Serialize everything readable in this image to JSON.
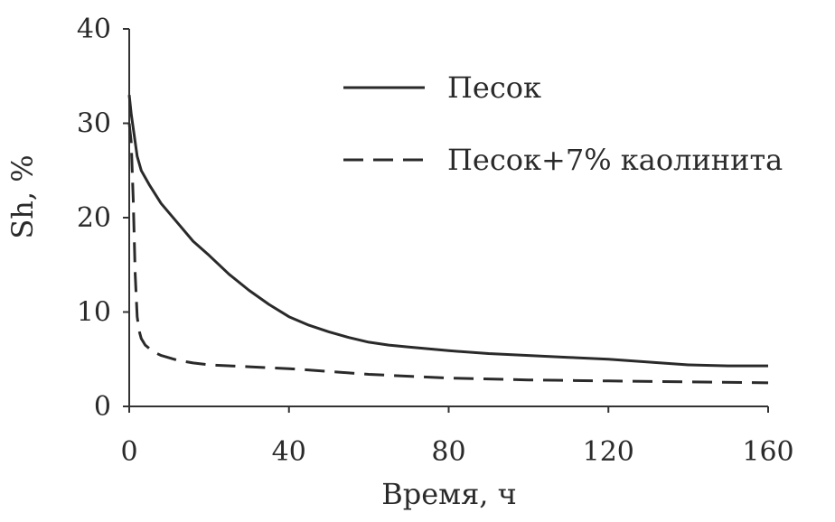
{
  "chart_data": {
    "type": "line",
    "title": "",
    "xlabel": "Время, ч",
    "ylabel": "Sh, %",
    "xlim": [
      0,
      160
    ],
    "ylim": [
      0,
      40
    ],
    "xticks": [
      0,
      40,
      80,
      120,
      160
    ],
    "yticks": [
      0,
      10,
      20,
      30,
      40
    ],
    "grid": false,
    "legend_position": "top-right",
    "series": [
      {
        "name": "Песок",
        "style": "solid",
        "color": "#2a2a2a",
        "x": [
          0,
          0.5,
          1,
          2,
          3,
          5,
          8,
          12,
          16,
          20,
          25,
          30,
          35,
          40,
          45,
          50,
          55,
          60,
          65,
          70,
          80,
          90,
          100,
          110,
          120,
          130,
          140,
          150,
          160
        ],
        "y": [
          33,
          31,
          29.5,
          26.5,
          25,
          23.5,
          21.5,
          19.5,
          17.5,
          16,
          14,
          12.3,
          10.8,
          9.5,
          8.6,
          7.9,
          7.3,
          6.8,
          6.5,
          6.3,
          5.9,
          5.6,
          5.4,
          5.2,
          5.0,
          4.7,
          4.4,
          4.3,
          4.3
        ]
      },
      {
        "name": "Песок+7% каолинита",
        "style": "dashed",
        "color": "#2a2a2a",
        "x": [
          0,
          0.5,
          1,
          1.5,
          2,
          2.5,
          3,
          4,
          6,
          8,
          12,
          16,
          20,
          30,
          40,
          50,
          60,
          70,
          80,
          100,
          120,
          140,
          160
        ],
        "y": [
          30,
          28,
          22,
          14,
          9.5,
          8.0,
          7.2,
          6.5,
          5.8,
          5.4,
          4.9,
          4.6,
          4.4,
          4.2,
          4.0,
          3.7,
          3.4,
          3.2,
          3.0,
          2.8,
          2.7,
          2.6,
          2.5
        ]
      }
    ]
  }
}
